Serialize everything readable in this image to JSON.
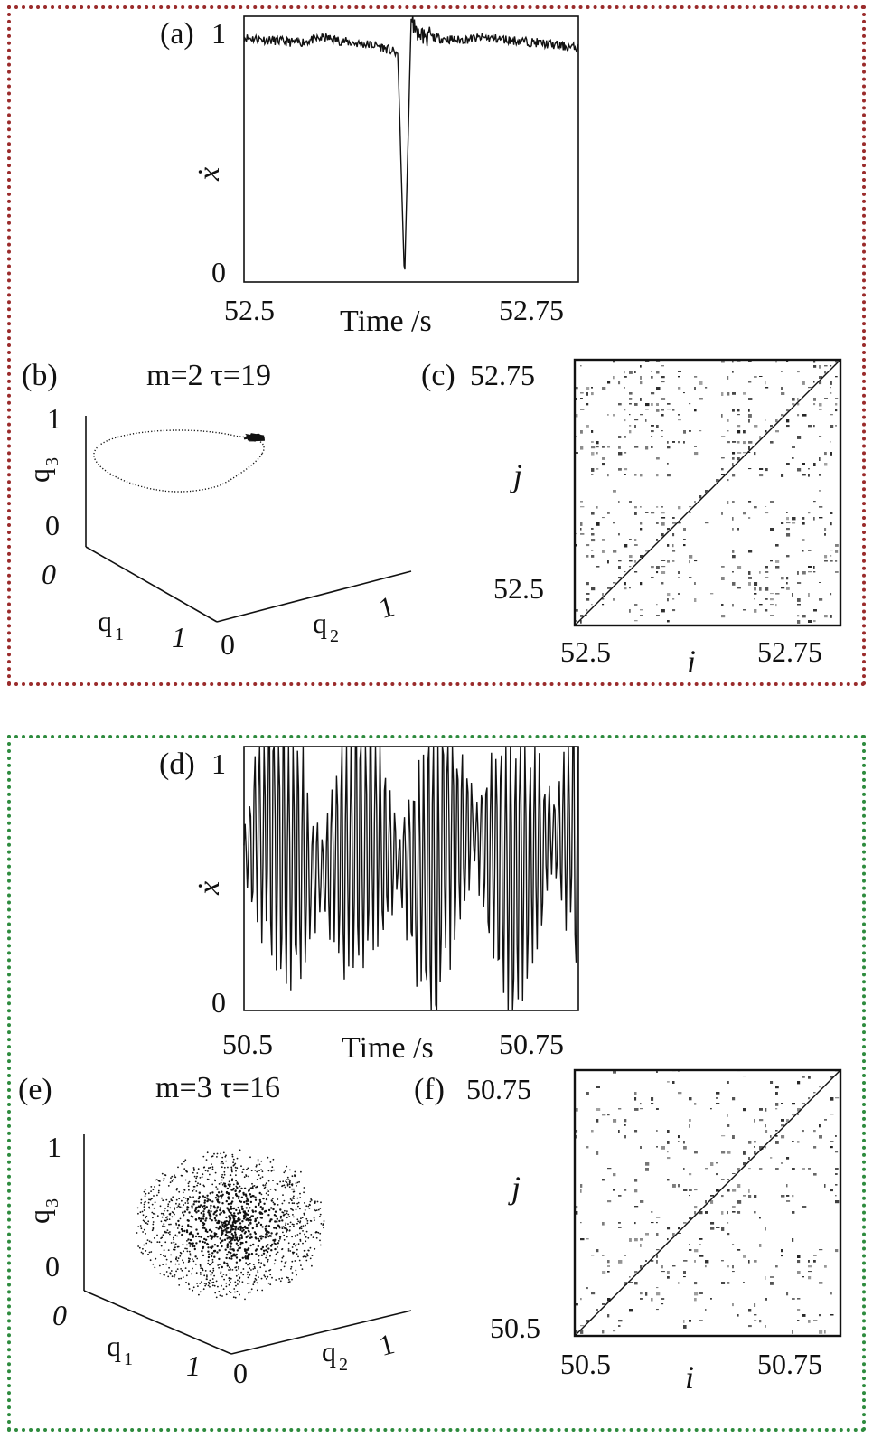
{
  "panels": {
    "a": {
      "label": "(a)",
      "ylabel": "ẋ",
      "xlabel": "Time /s",
      "xticks": [
        "52.5",
        "52.75"
      ],
      "yticks": [
        "0",
        "1"
      ]
    },
    "b": {
      "label": "(b)",
      "params": "m=2   τ=19",
      "q1": "q",
      "q1sub": "1",
      "q2": "q",
      "q2sub": "2",
      "q3": "q",
      "q3sub": "3",
      "t0": "0",
      "t1": "1",
      "o1": "0",
      "o2": "0",
      "one1": "1",
      "one2": "1",
      "tq3zero": "0"
    },
    "c": {
      "label": "(c)",
      "ylabel": "j",
      "xlabel": "i",
      "xticks": [
        "52.5",
        "52.75"
      ],
      "yticks": [
        "52.5",
        "52.75"
      ]
    },
    "d": {
      "label": "(d)",
      "ylabel": "ẋ",
      "xlabel": "Time /s",
      "xticks": [
        "50.5",
        "50.75"
      ],
      "yticks": [
        "0",
        "1"
      ]
    },
    "e": {
      "label": "(e)",
      "params": "m=3   τ=16",
      "q1": "q",
      "q1sub": "1",
      "q2": "q",
      "q2sub": "2",
      "q3": "q",
      "q3sub": "3",
      "t1": "1",
      "tq3zero": "0",
      "o1": "0",
      "o2": "0",
      "one1": "1",
      "one2": "1"
    },
    "f": {
      "label": "(f)",
      "ylabel": "j",
      "xlabel": "i",
      "xticks": [
        "50.5",
        "50.75"
      ],
      "yticks": [
        "50.5",
        "50.75"
      ]
    }
  },
  "chart_data": [
    {
      "type": "line",
      "panel": "a",
      "xlabel": "Time /s",
      "ylabel": "ẋ",
      "xlim": [
        52.5,
        52.75
      ],
      "ylim": [
        0,
        1
      ],
      "description_series": "noisy plateau near 0.92 with a sharp dip to 0 at about 52.62 s",
      "x": [
        52.5,
        52.52,
        52.54,
        52.56,
        52.58,
        52.6,
        52.615,
        52.62,
        52.625,
        52.63,
        52.64,
        52.66,
        52.68,
        52.7,
        52.72,
        52.75
      ],
      "y": [
        0.92,
        0.91,
        0.9,
        0.92,
        0.9,
        0.89,
        0.86,
        0.0,
        0.99,
        0.93,
        0.92,
        0.91,
        0.92,
        0.91,
        0.9,
        0.88
      ]
    },
    {
      "type": "line",
      "panel": "d",
      "xlabel": "Time /s",
      "ylabel": "ẋ",
      "xlim": [
        50.5,
        50.75
      ],
      "ylim": [
        0,
        1
      ],
      "x": [
        50.5,
        50.52,
        50.54,
        50.56,
        50.58,
        50.6,
        50.62,
        50.64,
        50.66,
        50.68,
        50.7,
        50.72,
        50.75
      ],
      "y": [
        0.65,
        0.3,
        0.8,
        0.4,
        0.85,
        0.25,
        0.85,
        0.0,
        0.9,
        0.35,
        0.8,
        0.4,
        1.0
      ]
    },
    {
      "type": "scatter",
      "panel": "b",
      "params": "m=2 τ=19",
      "axes": [
        "q1",
        "q2",
        "q3"
      ],
      "lim": [
        0,
        1
      ]
    },
    {
      "type": "scatter",
      "panel": "e",
      "params": "m=3 τ=16",
      "axes": [
        "q1",
        "q2",
        "q3"
      ],
      "lim": [
        0,
        1
      ]
    },
    {
      "type": "heatmap",
      "panel": "c",
      "xlabel": "i",
      "ylabel": "j",
      "xlim": [
        52.5,
        52.75
      ],
      "ylim": [
        52.5,
        52.75
      ]
    },
    {
      "type": "heatmap",
      "panel": "f",
      "xlabel": "i",
      "ylabel": "j",
      "xlim": [
        50.5,
        50.75
      ],
      "ylim": [
        50.5,
        50.75
      ]
    }
  ],
  "colors": {
    "top_frame": "#9a2b2b",
    "bottom_frame": "#2e8b3e",
    "ink": "#111111"
  }
}
